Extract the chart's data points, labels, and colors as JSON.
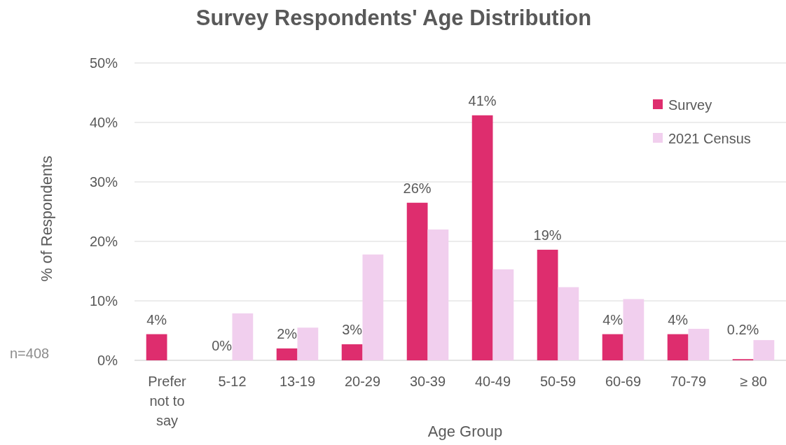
{
  "chart_data": {
    "type": "bar",
    "title": "Survey Respondents' Age Distribution",
    "xlabel": "Age Group",
    "ylabel": "% of Respondents",
    "categories": [
      "Prefer not to say",
      "5-12",
      "13-19",
      "20-29",
      "30-39",
      "40-49",
      "50-59",
      "60-69",
      "70-79",
      "≥ 80"
    ],
    "series": [
      {
        "name": "Survey",
        "color": "#de2d6e",
        "values": [
          4.4,
          0,
          2.0,
          2.7,
          26.5,
          41.2,
          18.6,
          4.4,
          4.4,
          0.2
        ],
        "value_labels": [
          "4%",
          "0%",
          "2%",
          "3%",
          "26%",
          "41%",
          "19%",
          "4%",
          "4%",
          "0.2%"
        ]
      },
      {
        "name": "2021 Census",
        "color": "#f1cfee",
        "values": [
          null,
          7.9,
          5.5,
          17.8,
          22,
          15.3,
          12.3,
          10.3,
          5.3,
          3.4
        ]
      }
    ],
    "ylim": [
      0,
      50
    ],
    "yticks": [
      {
        "value": 0,
        "label": "0%"
      },
      {
        "value": 10,
        "label": "10%"
      },
      {
        "value": 20,
        "label": "20%"
      },
      {
        "value": 30,
        "label": "30%"
      },
      {
        "value": 40,
        "label": "40%"
      },
      {
        "value": 50,
        "label": "50%"
      }
    ],
    "grid": "y",
    "legend": "top right",
    "annotations": [
      "n=408"
    ]
  }
}
